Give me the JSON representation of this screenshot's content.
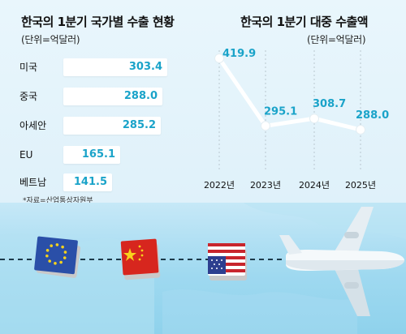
{
  "chart_data": [
    {
      "type": "bar",
      "orientation": "horizontal",
      "title": "한국의 1분기 국가별 수출 현황",
      "unit": "(단위=억달러)",
      "categories": [
        "미국",
        "중국",
        "아세안",
        "EU",
        "베트남"
      ],
      "values": [
        303.4,
        288.0,
        285.2,
        165.1,
        141.5
      ],
      "value_labels": [
        "303.4",
        "288.0",
        "285.2",
        "165.1",
        "141.5"
      ],
      "source": "*자료=산업통상자원부"
    },
    {
      "type": "line",
      "title": "한국의 1분기 대중 수출액",
      "unit": "(단위=억달러)",
      "x": [
        "2022년",
        "2023년",
        "2024년",
        "2025년"
      ],
      "y": [
        419.9,
        295.1,
        308.7,
        288.0
      ],
      "value_labels": [
        "419.9",
        "295.1",
        "308.7",
        "288.0"
      ],
      "color": "#ffffff",
      "grid": "vertical dashed"
    }
  ]
}
